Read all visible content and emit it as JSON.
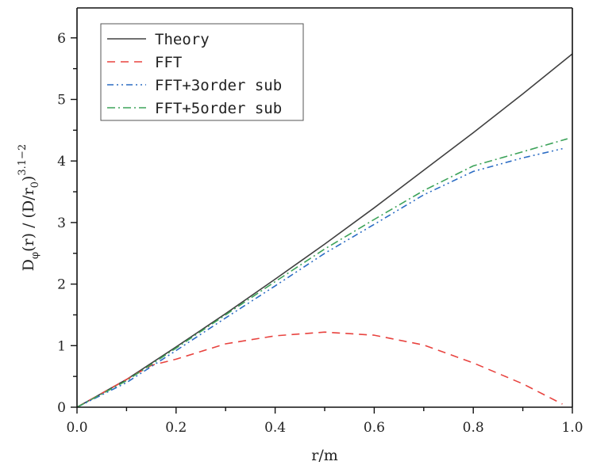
{
  "chart_data": {
    "type": "line",
    "title": "",
    "xlabel": "r/m",
    "ylabel": "D_φ(r) / (D/r_0)^(3.1−2)",
    "ylabel_parts": {
      "main": "D",
      "sub1": "φ",
      "mid": "(r) / (D/r",
      "sub2": "0",
      "close": ")",
      "sup": "3.1−2"
    },
    "xlim": [
      0,
      1.0
    ],
    "ylim": [
      0,
      6.5
    ],
    "x_ticks": [
      "0.0",
      "0.2",
      "0.4",
      "0.6",
      "0.8",
      "1.0"
    ],
    "y_ticks": [
      "0",
      "1",
      "2",
      "3",
      "4",
      "5",
      "6"
    ],
    "grid": false,
    "legend_position": "upper left",
    "series": [
      {
        "name": "Theory",
        "color": "#404040",
        "dash": "solid",
        "x": [
          0,
          0.1,
          0.2,
          0.3,
          0.4,
          0.5,
          0.6,
          0.7,
          0.8,
          0.9,
          1.0
        ],
        "values": [
          0,
          0.45,
          0.98,
          1.52,
          2.08,
          2.65,
          3.24,
          3.85,
          4.46,
          5.09,
          5.74
        ]
      },
      {
        "name": "FFT",
        "color": "#e8433f",
        "dash": "dashed",
        "x": [
          0,
          0.1,
          0.15,
          0.2,
          0.3,
          0.4,
          0.5,
          0.6,
          0.7,
          0.8,
          0.9,
          0.98
        ],
        "values": [
          0,
          0.45,
          0.68,
          0.78,
          1.03,
          1.16,
          1.22,
          1.17,
          1.01,
          0.72,
          0.38,
          0.05
        ]
      },
      {
        "name": "FFT+3order sub",
        "color": "#2b6cc4",
        "dash": "dash-dot-dot",
        "x": [
          0,
          0.1,
          0.2,
          0.3,
          0.4,
          0.5,
          0.6,
          0.7,
          0.8,
          0.9,
          0.98
        ],
        "values": [
          0,
          0.4,
          0.92,
          1.45,
          1.97,
          2.5,
          2.97,
          3.45,
          3.83,
          4.05,
          4.2
        ]
      },
      {
        "name": "FFT+5order sub",
        "color": "#3da35a",
        "dash": "dash-dot",
        "x": [
          0,
          0.1,
          0.2,
          0.3,
          0.4,
          0.5,
          0.6,
          0.7,
          0.8,
          0.9,
          0.99
        ],
        "values": [
          0,
          0.43,
          0.96,
          1.5,
          2.04,
          2.57,
          3.05,
          3.52,
          3.92,
          4.15,
          4.36
        ]
      }
    ]
  }
}
